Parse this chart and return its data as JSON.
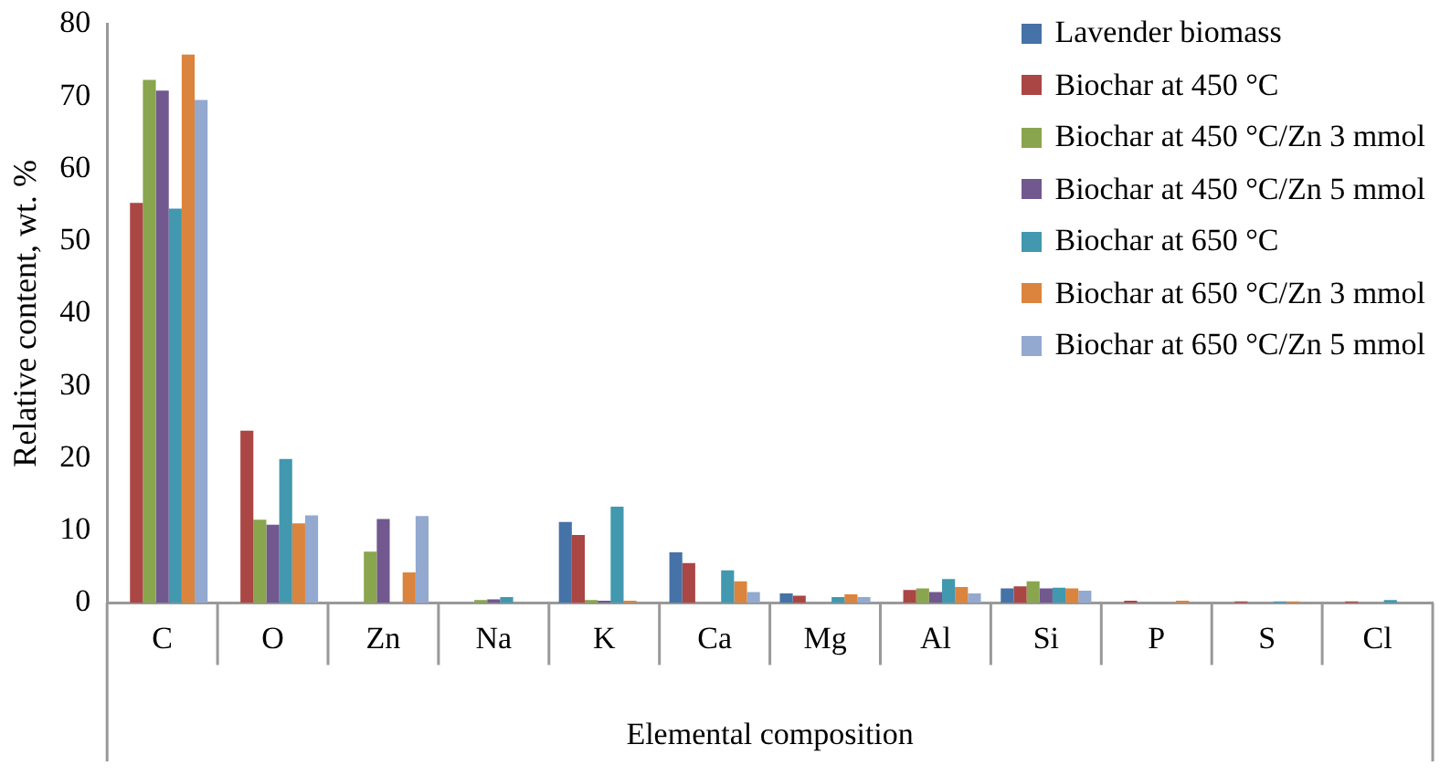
{
  "chart_data": {
    "type": "bar",
    "xlabel": "Elemental composition",
    "ylabel": "Relative content, wt. %",
    "categories": [
      "C",
      "O",
      "Zn",
      "Na",
      "K",
      "Ca",
      "Mg",
      "Al",
      "Si",
      "P",
      "S",
      "Cl"
    ],
    "ylim": [
      0,
      80
    ],
    "yticks": [
      0,
      10,
      20,
      30,
      40,
      50,
      60,
      70,
      80
    ],
    "grid": false,
    "legend": "top right",
    "series": [
      {
        "name": "Lavender biomass",
        "color": "#4572a7",
        "values": [
          null,
          null,
          null,
          null,
          11.2,
          7.0,
          1.3,
          null,
          2.0,
          null,
          null,
          null
        ]
      },
      {
        "name": "Biochar at 450 °C",
        "color": "#aa4643",
        "values": [
          55.3,
          23.8,
          null,
          null,
          9.4,
          5.5,
          1.0,
          1.8,
          2.3,
          0.3,
          0.2,
          0.2
        ]
      },
      {
        "name": "Biochar at 450 °C/Zn 3 mmol",
        "color": "#89a54e",
        "values": [
          72.3,
          11.5,
          7.1,
          0.4,
          0.4,
          null,
          null,
          2.0,
          3.0,
          null,
          null,
          null
        ]
      },
      {
        "name": "Biochar at 450 °C/Zn 5 mmol",
        "color": "#71588f",
        "values": [
          70.8,
          10.8,
          11.6,
          0.5,
          0.3,
          null,
          null,
          1.5,
          2.0,
          null,
          null,
          null
        ]
      },
      {
        "name": "Biochar at 650 °C",
        "color": "#4198af",
        "values": [
          54.5,
          19.9,
          null,
          0.8,
          13.3,
          4.5,
          0.8,
          3.3,
          2.1,
          null,
          0.2,
          0.4
        ]
      },
      {
        "name": "Biochar at 650 °C/Zn 3 mmol",
        "color": "#db843d",
        "values": [
          75.8,
          11.0,
          4.2,
          null,
          0.3,
          3.0,
          1.2,
          2.2,
          2.0,
          0.3,
          0.2,
          null
        ]
      },
      {
        "name": "Biochar at 650 °C/Zn 5 mmol",
        "color": "#93a9cf",
        "values": [
          69.5,
          12.1,
          12.0,
          null,
          null,
          1.5,
          0.8,
          1.3,
          1.7,
          null,
          null,
          null
        ]
      }
    ]
  }
}
